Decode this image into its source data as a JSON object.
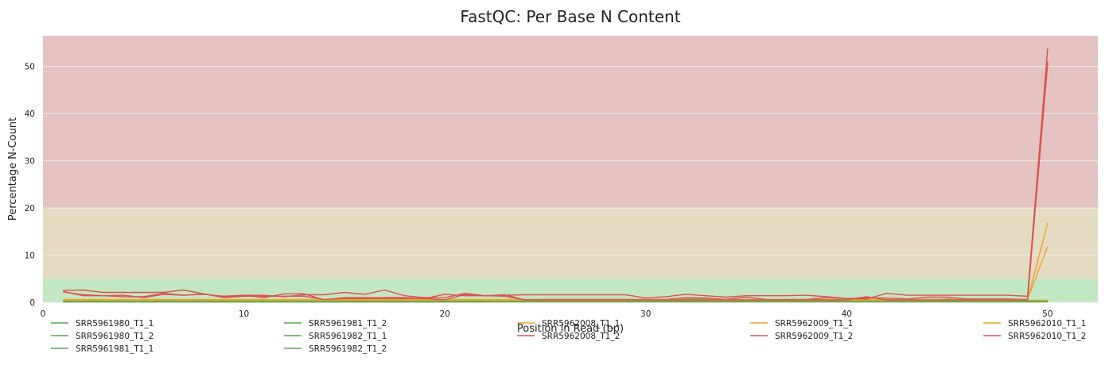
{
  "chart_data": {
    "type": "line",
    "title": "FastQC: Per Base N Content",
    "xlabel": "Position in Read (bp)",
    "ylabel": "Percentage N-Count",
    "xlim": [
      0,
      52.5
    ],
    "ylim": [
      0,
      56.5
    ],
    "xticks": [
      0,
      10,
      20,
      30,
      40,
      50
    ],
    "yticks": [
      0,
      10,
      20,
      30,
      40,
      50
    ],
    "grid": true,
    "legend_position": "bottom",
    "bands": [
      {
        "name": "pass",
        "from": 0,
        "to": 5,
        "color": "#c3e6c3"
      },
      {
        "name": "warn",
        "from": 5,
        "to": 20,
        "color": "#e5dbc2"
      },
      {
        "name": "fail",
        "from": 20,
        "to": 56.5,
        "color": "#e5c2c2"
      }
    ],
    "x": [
      1,
      2,
      3,
      4,
      5,
      6,
      7,
      8,
      9,
      10,
      11,
      12,
      13,
      14,
      15,
      16,
      17,
      18,
      19,
      20,
      21,
      22,
      23,
      24,
      25,
      26,
      27,
      28,
      29,
      30,
      31,
      32,
      33,
      34,
      35,
      36,
      37,
      38,
      39,
      40,
      41,
      42,
      43,
      44,
      45,
      46,
      47,
      48,
      49,
      50
    ],
    "series": [
      {
        "name": "SRR5961980_T1_1",
        "color": "#4daf4a",
        "values": [
          0.2,
          0.2,
          0.2,
          0.2,
          0.2,
          0.2,
          0.2,
          0.2,
          0.2,
          0.2,
          0.2,
          0.2,
          0.2,
          0.2,
          0.2,
          0.2,
          0.2,
          0.2,
          0.2,
          0.2,
          0.2,
          0.2,
          0.2,
          0.2,
          0.2,
          0.2,
          0.2,
          0.2,
          0.2,
          0.2,
          0.2,
          0.2,
          0.2,
          0.2,
          0.2,
          0.2,
          0.2,
          0.2,
          0.2,
          0.2,
          0.2,
          0.2,
          0.2,
          0.2,
          0.2,
          0.2,
          0.2,
          0.2,
          0.2,
          0.3
        ]
      },
      {
        "name": "SRR5961980_T1_2",
        "color": "#4daf4a",
        "values": [
          0.1,
          0.1,
          0.1,
          0.1,
          0.1,
          0.1,
          0.1,
          0.1,
          0.1,
          0.1,
          0.1,
          0.1,
          0.1,
          0.1,
          0.1,
          0.1,
          0.1,
          0.1,
          0.1,
          0.1,
          0.1,
          0.1,
          0.3,
          0.3,
          0.3,
          0.3,
          0.3,
          0.3,
          0.3,
          0.3,
          0.3,
          0.3,
          0.3,
          0.3,
          0.3,
          0.3,
          0.3,
          0.3,
          0.3,
          0.3,
          0.3,
          0.3,
          0.3,
          0.3,
          0.3,
          0.3,
          0.3,
          0.3,
          0.3,
          0.3
        ]
      },
      {
        "name": "SRR5961981_T1_1",
        "color": "#4daf4a",
        "values": [
          0.3,
          0.3,
          0.3,
          0.1,
          0.1,
          0.1,
          0.1,
          0.1,
          0.1,
          0.1,
          0.1,
          0.1,
          0.1,
          0.1,
          0.1,
          0.1,
          0.1,
          0.1,
          0.1,
          0.1,
          0.1,
          0.1,
          0.4,
          0.4,
          0.4,
          0.4,
          0.4,
          0.4,
          0.4,
          0.4,
          0.4,
          0.7,
          0.7,
          0.4,
          0.4,
          0.4,
          0.4,
          0.4,
          0.4,
          0.4,
          0.4,
          0.4,
          0.4,
          0.4,
          0.7,
          0.4,
          0.4,
          0.4,
          0.4,
          0.4
        ]
      },
      {
        "name": "SRR5961981_T1_2",
        "color": "#4daf4a",
        "values": [
          0.1,
          0.1,
          0.1,
          0.1,
          0.1,
          0.1,
          0.1,
          0.1,
          0.1,
          0.1,
          0.1,
          0.1,
          0.1,
          0.1,
          0.1,
          0.3,
          0.1,
          0.1,
          0.1,
          0.1,
          0.1,
          0.1,
          0.1,
          0.1,
          0.1,
          0.1,
          0.1,
          0.1,
          0.1,
          0.1,
          0.1,
          0.1,
          0.1,
          0.1,
          0.1,
          0.1,
          0.1,
          0.1,
          0.1,
          0.1,
          0.1,
          0.1,
          0.1,
          0.1,
          0.1,
          0.1,
          0.1,
          0.1,
          0.1,
          0.1
        ]
      },
      {
        "name": "SRR5961982_T1_1",
        "color": "#4daf4a",
        "values": [
          0.2,
          0.2,
          0.2,
          0.2,
          0.2,
          0.2,
          0.2,
          0.2,
          0.2,
          0.2,
          0.2,
          0.2,
          0.2,
          0.2,
          0.2,
          0.2,
          0.2,
          0.2,
          0.2,
          0.2,
          0.2,
          0.2,
          0.2,
          0.2,
          0.2,
          0.2,
          0.2,
          0.2,
          0.2,
          0.2,
          0.2,
          0.2,
          0.2,
          0.2,
          0.2,
          0.2,
          0.2,
          0.2,
          0.2,
          0.2,
          0.2,
          0.2,
          0.2,
          0.2,
          0.2,
          0.2,
          0.2,
          0.2,
          0.2,
          0.2
        ]
      },
      {
        "name": "SRR5961982_T1_2",
        "color": "#4daf4a",
        "values": [
          0.1,
          0.1,
          0.1,
          0.1,
          0.1,
          0.1,
          0.1,
          0.1,
          0.1,
          0.1,
          0.1,
          0.1,
          0.1,
          0.1,
          0.1,
          0.1,
          0.1,
          0.1,
          0.1,
          0.1,
          0.1,
          0.1,
          0.1,
          0.1,
          0.1,
          0.1,
          0.1,
          0.1,
          0.1,
          0.1,
          0.1,
          0.1,
          0.1,
          0.1,
          0.1,
          0.1,
          0.1,
          0.1,
          0.1,
          0.1,
          0.1,
          0.1,
          0.1,
          0.1,
          0.1,
          0.1,
          0.1,
          0.1,
          0.1,
          0.1
        ]
      },
      {
        "name": "SRR5962008_T1_1",
        "color": "#f0a033",
        "values": [
          0.6,
          0.6,
          0.6,
          0.6,
          0.6,
          0.6,
          0.6,
          0.6,
          0.6,
          0.6,
          0.6,
          0.6,
          0.6,
          0.6,
          0.6,
          0.6,
          0.6,
          0.6,
          0.6,
          0.6,
          0.6,
          0.6,
          0.6,
          0.6,
          0.6,
          0.6,
          0.6,
          0.6,
          0.6,
          0.6,
          0.6,
          0.6,
          0.6,
          0.6,
          0.6,
          0.6,
          0.6,
          0.6,
          0.6,
          0.6,
          0.6,
          0.6,
          0.6,
          0.6,
          0.6,
          0.6,
          0.6,
          0.6,
          0.6,
          11.8
        ]
      },
      {
        "name": "SRR5962008_T1_2",
        "color": "#d9534f",
        "values": [
          2.3,
          1.4,
          1.4,
          1.5,
          1.0,
          1.7,
          1.5,
          1.7,
          1.3,
          1.5,
          1.0,
          1.8,
          1.8,
          0.5,
          1.0,
          1.0,
          1.0,
          1.0,
          0.8,
          1.7,
          1.4,
          1.4,
          1.6,
          0.5,
          0.6,
          0.6,
          0.6,
          0.6,
          0.6,
          0.6,
          0.6,
          1.0,
          0.9,
          0.6,
          1.1,
          0.6,
          0.6,
          0.6,
          1.0,
          0.8,
          0.9,
          0.9,
          0.7,
          1.1,
          1.1,
          0.7,
          0.7,
          0.7,
          0.6,
          50.5
        ]
      },
      {
        "name": "SRR5962009_T1_1",
        "color": "#f0a033",
        "values": [
          0.5,
          0.5,
          0.5,
          0.5,
          0.5,
          0.5,
          0.5,
          0.5,
          0.5,
          0.5,
          0.5,
          0.5,
          0.5,
          0.5,
          0.5,
          0.5,
          0.5,
          0.5,
          0.5,
          0.5,
          0.5,
          0.5,
          0.5,
          0.5,
          0.5,
          0.5,
          0.5,
          0.5,
          0.5,
          0.5,
          0.5,
          0.5,
          0.5,
          0.5,
          0.5,
          0.5,
          0.5,
          0.5,
          0.5,
          0.5,
          0.5,
          0.5,
          0.5,
          0.5,
          0.5,
          0.5,
          0.5,
          0.5,
          0.5,
          16.8
        ]
      },
      {
        "name": "SRR5962009_T1_2",
        "color": "#d9534f",
        "values": [
          2.5,
          2.6,
          2.1,
          2.1,
          2.1,
          2.1,
          2.6,
          1.8,
          1.1,
          1.5,
          1.5,
          1.2,
          1.6,
          1.6,
          2.1,
          1.7,
          2.6,
          1.4,
          1.0,
          1.0,
          1.9,
          1.4,
          1.5,
          1.6,
          1.6,
          1.6,
          1.6,
          1.6,
          1.6,
          0.9,
          1.2,
          1.7,
          1.4,
          1.1,
          1.4,
          1.4,
          1.4,
          1.5,
          1.2,
          0.8,
          0.7,
          1.9,
          1.5,
          1.5,
          1.5,
          1.5,
          1.5,
          1.5,
          1.3,
          53.8
        ]
      },
      {
        "name": "SRR5962010_T1_1",
        "color": "#f0a033",
        "values": [
          0.4,
          0.4,
          0.4,
          0.4,
          0.4,
          0.4,
          0.4,
          0.4,
          0.4,
          0.4,
          0.4,
          0.4,
          0.4,
          0.4,
          0.4,
          0.4,
          0.4,
          0.4,
          0.4,
          0.4,
          0.4,
          0.4,
          0.4,
          0.4,
          0.4,
          0.4,
          0.4,
          0.4,
          0.4,
          0.4,
          0.4,
          0.4,
          0.4,
          0.4,
          0.4,
          0.4,
          0.4,
          0.4,
          0.4,
          0.4,
          0.4,
          0.4,
          0.4,
          0.4,
          0.4,
          0.4,
          0.4,
          0.4,
          0.4,
          0.4
        ]
      },
      {
        "name": "SRR5962010_T1_2",
        "color": "#d9534f",
        "values": [
          2.2,
          1.6,
          1.4,
          1.2,
          1.2,
          1.9,
          1.5,
          1.8,
          1.0,
          1.3,
          1.3,
          1.3,
          1.3,
          0.6,
          0.8,
          0.8,
          0.8,
          0.8,
          0.8,
          0.5,
          1.7,
          1.4,
          1.3,
          0.5,
          0.5,
          0.5,
          0.5,
          0.5,
          0.5,
          0.5,
          0.5,
          0.5,
          0.5,
          0.5,
          0.5,
          0.5,
          0.5,
          0.5,
          0.5,
          0.5,
          1.2,
          0.5,
          0.5,
          0.5,
          0.5,
          0.5,
          0.5,
          0.5,
          0.5,
          51.0
        ]
      }
    ]
  }
}
